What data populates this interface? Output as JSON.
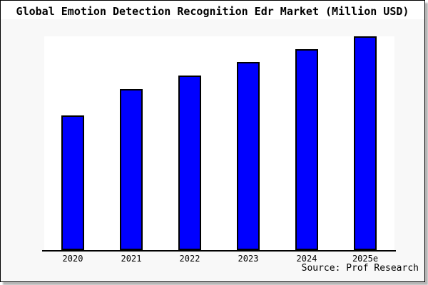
{
  "title": "Global Emotion Detection Recognition Edr Market (Million USD)",
  "source": "Source: Prof Research",
  "colors": {
    "bar_fill": "#0000ff",
    "bar_border": "#000000",
    "figure_background": "#f8f8f8",
    "plot_background": "#ffffff",
    "axis": "#000000",
    "text": "#000000"
  },
  "chart_data": {
    "type": "bar",
    "title": "Global Emotion Detection Recognition Edr Market (Million USD)",
    "categories": [
      "2020",
      "2021",
      "2022",
      "2023",
      "2024",
      "2025e"
    ],
    "values": [
      63,
      75.3,
      81.7,
      88,
      94,
      100
    ],
    "values_note": "No y-axis scale shown in image; values are relative bar heights as percent of the 2025e bar",
    "xlabel": "",
    "ylabel": "",
    "ylim": [
      0,
      100
    ],
    "grid": false,
    "legend": null,
    "annotation": "Source: Prof Research"
  }
}
